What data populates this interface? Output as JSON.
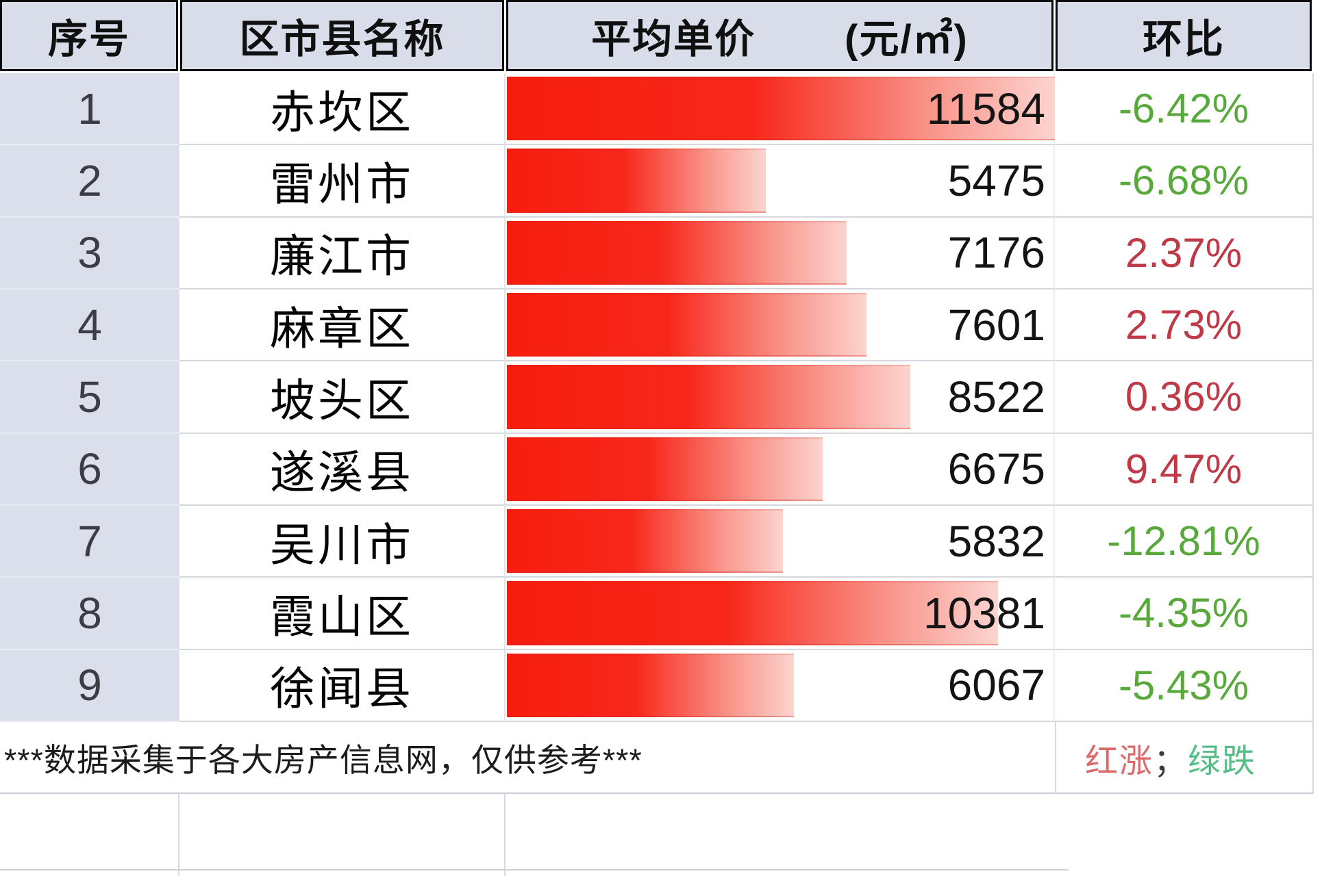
{
  "header": {
    "index_label": "序号",
    "name_label": "区市县名称",
    "price_label": "平均单价",
    "price_unit": "(元/㎡)",
    "change_label": "环比"
  },
  "rows": [
    {
      "index": 1,
      "name": "赤坎区",
      "price": 11584,
      "change": "-6.42%"
    },
    {
      "index": 2,
      "name": "雷州市",
      "price": 5475,
      "change": "-6.68%"
    },
    {
      "index": 3,
      "name": "廉江市",
      "price": 7176,
      "change": "2.37%"
    },
    {
      "index": 4,
      "name": "麻章区",
      "price": 7601,
      "change": "2.73%"
    },
    {
      "index": 5,
      "name": "坡头区",
      "price": 8522,
      "change": "0.36%"
    },
    {
      "index": 6,
      "name": "遂溪县",
      "price": 6675,
      "change": "9.47%"
    },
    {
      "index": 7,
      "name": "吴川市",
      "price": 5832,
      "change": "-12.81%"
    },
    {
      "index": 8,
      "name": "霞山区",
      "price": 10381,
      "change": "-4.35%"
    },
    {
      "index": 9,
      "name": "徐闻县",
      "price": 6067,
      "change": "-5.43%"
    }
  ],
  "footer": {
    "note": "***数据采集于各大房产信息网，仅供参考***",
    "legend_red": "红涨",
    "legend_separator": "；",
    "legend_green": "绿跌"
  },
  "colors": {
    "header_bg": "#d9dde9",
    "index_col_bg": "#dbdfec",
    "bar_red": "#f71d0e",
    "bar_fade": "#fcd4cf",
    "positive_change": "#bf3a46",
    "negative_change": "#58a83c",
    "legend_red": "#dd6a6a",
    "legend_green": "#56bd88"
  },
  "chart_data": {
    "type": "bar",
    "title": "平均单价 (元/㎡) — 红色渐变数据条",
    "orientation": "horizontal",
    "categories": [
      "赤坎区",
      "雷州市",
      "廉江市",
      "麻章区",
      "坡头区",
      "遂溪县",
      "吴川市",
      "霞山区",
      "徐闻县"
    ],
    "values": [
      11584,
      5475,
      7176,
      7601,
      8522,
      6675,
      5832,
      10381,
      6067
    ],
    "series": [
      {
        "name": "平均单价(元/㎡)",
        "values": [
          11584,
          5475,
          7176,
          7601,
          8522,
          6675,
          5832,
          10381,
          6067
        ]
      },
      {
        "name": "环比",
        "values": [
          "-6.42%",
          "-6.68%",
          "2.37%",
          "2.73%",
          "0.36%",
          "9.47%",
          "-12.81%",
          "-4.35%",
          "-5.43%"
        ]
      }
    ],
    "max_value": 11584,
    "xlim": [
      0,
      11584
    ],
    "legend_position": "footer-right",
    "grid": false,
    "bar_note": "bar length proportional to value; red = price rise, green = price fall"
  }
}
